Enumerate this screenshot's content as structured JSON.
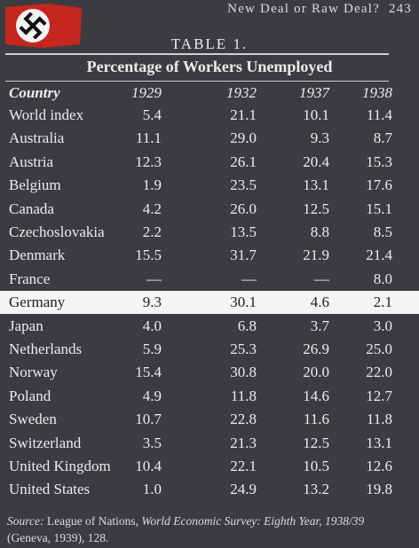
{
  "header": {
    "running_title": "New Deal or Raw Deal?",
    "page_number": "243"
  },
  "table_label": "TABLE 1.",
  "caption": "Percentage of Workers Unemployed",
  "columns": [
    "Country",
    "1929",
    "1932",
    "1937",
    "1938"
  ],
  "rows": [
    {
      "country": "World index",
      "y1929": "5.4",
      "y1932": "21.1",
      "y1937": "10.1",
      "y1938": "11.4"
    },
    {
      "country": "Australia",
      "y1929": "11.1",
      "y1932": "29.0",
      "y1937": "9.3",
      "y1938": "8.7"
    },
    {
      "country": "Austria",
      "y1929": "12.3",
      "y1932": "26.1",
      "y1937": "20.4",
      "y1938": "15.3"
    },
    {
      "country": "Belgium",
      "y1929": "1.9",
      "y1932": "23.5",
      "y1937": "13.1",
      "y1938": "17.6"
    },
    {
      "country": "Canada",
      "y1929": "4.2",
      "y1932": "26.0",
      "y1937": "12.5",
      "y1938": "15.1"
    },
    {
      "country": "Czechoslovakia",
      "y1929": "2.2",
      "y1932": "13.5",
      "y1937": "8.8",
      "y1938": "8.5"
    },
    {
      "country": "Denmark",
      "y1929": "15.5",
      "y1932": "31.7",
      "y1937": "21.9",
      "y1938": "21.4"
    },
    {
      "country": "France",
      "y1929": "—",
      "y1932": "—",
      "y1937": "—",
      "y1938": "8.0"
    },
    {
      "country": "Germany",
      "y1929": "9.3",
      "y1932": "30.1",
      "y1937": "4.6",
      "y1938": "2.1"
    },
    {
      "country": "Japan",
      "y1929": "4.0",
      "y1932": "6.8",
      "y1937": "3.7",
      "y1938": "3.0"
    },
    {
      "country": "Netherlands",
      "y1929": "5.9",
      "y1932": "25.3",
      "y1937": "26.9",
      "y1938": "25.0"
    },
    {
      "country": "Norway",
      "y1929": "15.4",
      "y1932": "30.8",
      "y1937": "20.0",
      "y1938": "22.0"
    },
    {
      "country": "Poland",
      "y1929": "4.9",
      "y1932": "11.8",
      "y1937": "14.6",
      "y1938": "12.7"
    },
    {
      "country": "Sweden",
      "y1929": "10.7",
      "y1932": "22.8",
      "y1937": "11.6",
      "y1938": "11.8"
    },
    {
      "country": "Switzerland",
      "y1929": "3.5",
      "y1932": "21.3",
      "y1937": "12.5",
      "y1938": "13.1"
    },
    {
      "country": "United Kingdom",
      "y1929": "10.4",
      "y1932": "22.1",
      "y1937": "10.5",
      "y1938": "12.6"
    },
    {
      "country": "United States",
      "y1929": "1.0",
      "y1932": "24.9",
      "y1937": "13.2",
      "y1938": "19.8"
    }
  ],
  "highlighted_row": "Germany",
  "source": {
    "label": "Source:",
    "text_before": " League of Nations, ",
    "title": "World Economic Survey: Eighth Year, 1938/39",
    "text_after": " (Geneva, 1939), 128."
  },
  "flag": {
    "icon": "swastika-flag-icon",
    "color": "#c5261e"
  },
  "colors": {
    "background": "#3a3c40",
    "highlight_row": "#f4f4f4"
  }
}
